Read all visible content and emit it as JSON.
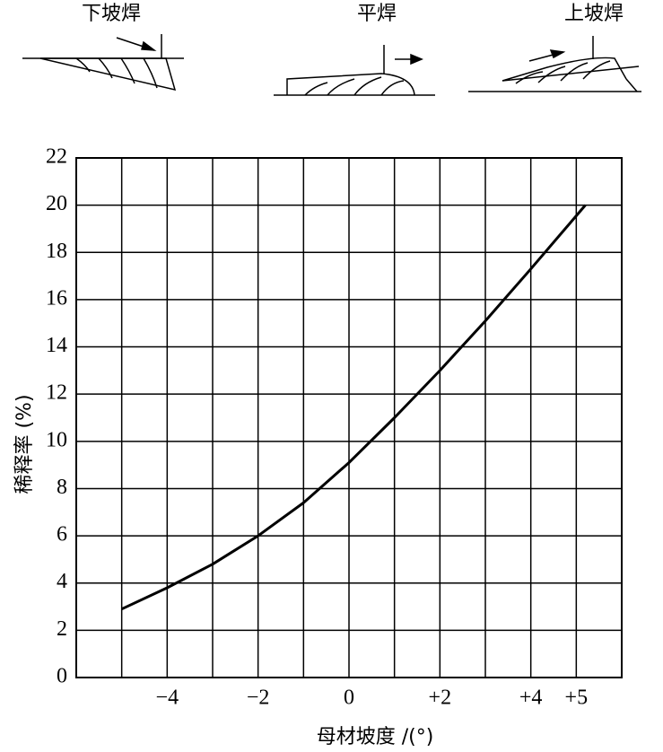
{
  "chart_data": {
    "type": "line",
    "diagram_labels": [
      "下坡焊",
      "平焊",
      "上坡焊"
    ],
    "ylabel": "稀释率 (%)",
    "xlabel": "母材坡度 /(°)",
    "x": [
      -5,
      -4,
      -3,
      -2,
      -1,
      0,
      1,
      2,
      3,
      4,
      5.2
    ],
    "series": [
      {
        "name": "稀释率",
        "color": "#000000",
        "values": [
          2.9,
          3.8,
          4.8,
          6.0,
          7.4,
          9.1,
          11.0,
          13.0,
          15.1,
          17.3,
          20
        ]
      }
    ],
    "xlim": [
      -6,
      6
    ],
    "xticks": [
      {
        "value": -4,
        "label": "−4"
      },
      {
        "value": -2,
        "label": "−2"
      },
      0,
      {
        "value": 2,
        "label": "+2"
      },
      {
        "value": 4,
        "label": "+4"
      },
      {
        "value": 5,
        "label": "+5"
      }
    ],
    "xgrid": [
      -6,
      -5,
      -4,
      -3,
      -2,
      -1,
      0,
      1,
      2,
      3,
      4,
      5,
      6
    ],
    "ylim": [
      0,
      22
    ],
    "yticks": [
      0,
      2,
      4,
      6,
      8,
      10,
      12,
      14,
      16,
      18,
      20,
      22
    ],
    "grid": true
  }
}
